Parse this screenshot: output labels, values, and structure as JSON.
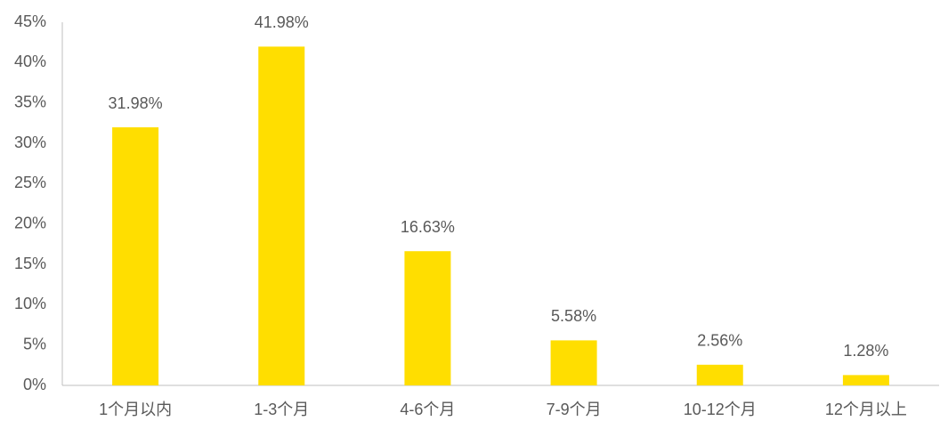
{
  "chart_data": {
    "type": "bar",
    "categories": [
      "1个月以内",
      "1-3个月",
      "4-6个月",
      "7-9个月",
      "10-12个月",
      "12个月以上"
    ],
    "values": [
      31.98,
      41.98,
      16.63,
      5.58,
      2.56,
      1.28
    ],
    "value_labels": [
      "31.98%",
      "41.98%",
      "16.63%",
      "5.58%",
      "2.56%",
      "1.28%"
    ],
    "color": "#ffde00",
    "ylim": [
      0,
      45
    ],
    "yticks": [
      {
        "value": 0,
        "label": "0%"
      },
      {
        "value": 5,
        "label": "5%"
      },
      {
        "value": 10,
        "label": "10%"
      },
      {
        "value": 15,
        "label": "15%"
      },
      {
        "value": 20,
        "label": "20%"
      },
      {
        "value": 25,
        "label": "25%"
      },
      {
        "value": 30,
        "label": "30%"
      },
      {
        "value": 35,
        "label": "35%"
      },
      {
        "value": 40,
        "label": "40%"
      },
      {
        "value": 45,
        "label": "45%"
      }
    ],
    "grid": false
  }
}
